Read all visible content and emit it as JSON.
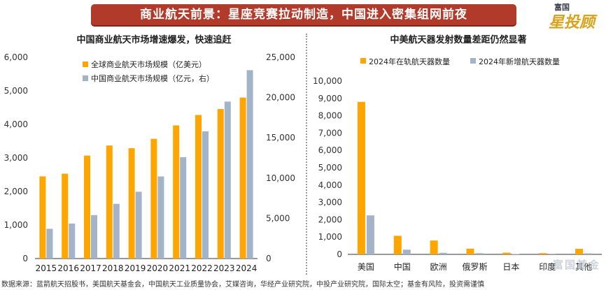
{
  "banner": {
    "title": "商业航天前景：星座竞赛拉动制造，中国进入密集组网前夜"
  },
  "logo": {
    "top": "富国",
    "main": "星投顾"
  },
  "watermark": "富国基金",
  "colors": {
    "orange": "#ffa500",
    "blue": "#a3b4c8",
    "banner": "#b23a2a",
    "axis": "#333333"
  },
  "source_note": "数据来源：蓝箭航天招股书，美国航天基金会，中国航天工业质量协会，艾媒咨询，华经产业研究院，中投产业研究院，国际太空；基金有风险，投资需谨慎",
  "chart_data": [
    {
      "type": "bar",
      "title": "中国商业航天市场增速爆发，快速追赶",
      "categories": [
        "2015",
        "2016",
        "2017",
        "2018",
        "2019",
        "2020",
        "2021",
        "2022",
        "2023",
        "2024"
      ],
      "series": [
        {
          "name": "全球商业航天市场规模（亿美元）",
          "axis": "left",
          "values": [
            2450,
            2530,
            3070,
            3370,
            3290,
            3570,
            3970,
            4280,
            4460,
            4800
          ]
        },
        {
          "name": "中国商业航天市场规模（亿元，右）",
          "axis": "right",
          "values": [
            3700,
            4350,
            5400,
            6800,
            8300,
            10200,
            12600,
            15800,
            19500,
            23400
          ]
        }
      ],
      "y_left": {
        "min": 0,
        "max": 6000,
        "ticks": [
          "0",
          "1,000",
          "2,000",
          "3,000",
          "4,000",
          "5,000",
          "6,000"
        ]
      },
      "y_right": {
        "min": 0,
        "max": 25000,
        "ticks": [
          "0",
          "5,000",
          "10,000",
          "15,000",
          "20,000",
          "25,000"
        ]
      },
      "legend_position": "top-left"
    },
    {
      "type": "bar",
      "title": "中美航天器发射数量差距仍然显著",
      "categories": [
        "美国",
        "中国",
        "欧洲",
        "俄罗斯",
        "日本",
        "印度",
        "其他"
      ],
      "series": [
        {
          "name": "2024年在轨航天器数量",
          "values": [
            8800,
            1070,
            800,
            330,
            100,
            70,
            320
          ]
        },
        {
          "name": "2024年新增航天器数量",
          "values": [
            2250,
            270,
            90,
            70,
            20,
            10,
            60
          ]
        }
      ],
      "y": {
        "min": 0,
        "max": 10000,
        "ticks": [
          "0",
          "1,000",
          "2,000",
          "3,000",
          "4,000",
          "5,000",
          "6,000",
          "7,000",
          "8,000",
          "9,000",
          "10,000"
        ]
      },
      "legend_position": "top"
    }
  ]
}
